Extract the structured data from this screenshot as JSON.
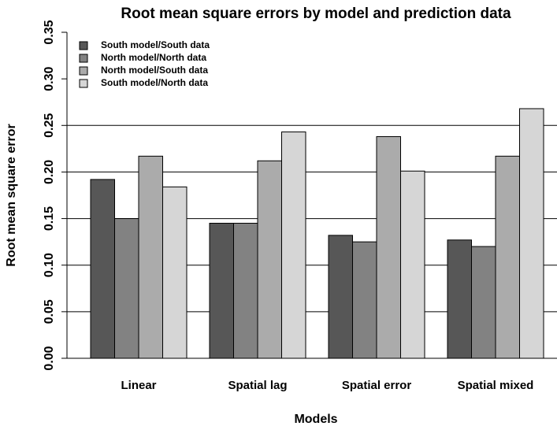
{
  "chart_data": {
    "type": "bar",
    "title": "Root mean square errors by model and prediction data",
    "x_label": "Models",
    "y_label": "Root mean square error",
    "categories": [
      "Linear",
      "Spatial lag",
      "Spatial error",
      "Spatial mixed"
    ],
    "series": [
      {
        "name": "South model/South data",
        "color": "#575757",
        "values": [
          0.192,
          0.145,
          0.132,
          0.127
        ]
      },
      {
        "name": "North model/North data",
        "color": "#828282",
        "values": [
          0.15,
          0.145,
          0.125,
          0.12
        ]
      },
      {
        "name": "North model/South data",
        "color": "#ababab",
        "values": [
          0.217,
          0.212,
          0.238,
          0.217
        ]
      },
      {
        "name": "South model/North data",
        "color": "#d6d6d6",
        "values": [
          0.184,
          0.243,
          0.201,
          0.268
        ]
      }
    ],
    "ylim": [
      0,
      0.35
    ],
    "yticks": [
      {
        "value": 0,
        "label": "0.00"
      },
      0.05,
      {
        "value": 0.1,
        "label": "0.10"
      },
      0.15,
      {
        "value": 0.2,
        "label": "0.20"
      },
      0.25,
      {
        "value": 0.3,
        "label": "0.30"
      },
      0.35
    ],
    "gridlines": [
      0,
      0.05,
      0.1,
      0.15,
      0.2,
      0.25
    ],
    "legend": "top-left"
  }
}
